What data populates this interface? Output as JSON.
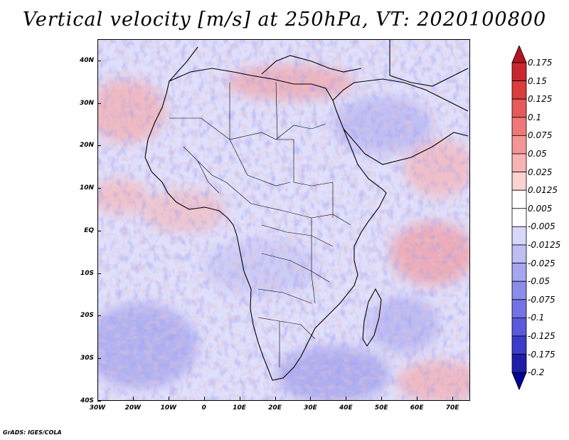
{
  "title": "Vertical velocity [m/s] at 250hPa, VT: 2020100800",
  "footer": "GrADS: IGES/COLA",
  "map": {
    "lon_range": [
      -30,
      75
    ],
    "lat_range": [
      -40,
      45
    ],
    "lat_labels": [
      "40N",
      "30N",
      "20N",
      "10N",
      "EQ",
      "10S",
      "20S",
      "30S",
      "40S"
    ],
    "lon_labels": [
      "30W",
      "20W",
      "10W",
      "0",
      "10E",
      "20E",
      "30E",
      "40E",
      "50E",
      "60E",
      "70E"
    ]
  },
  "colorbar": {
    "labels": [
      "0.175",
      "0.15",
      "0.125",
      "0.1",
      "0.075",
      "0.05",
      "0.025",
      "0.0125",
      "0.005",
      "-0.005",
      "-0.0125",
      "-0.025",
      "-0.05",
      "-0.075",
      "-0.1",
      "-0.125",
      "-0.175",
      "-0.2"
    ],
    "colors": [
      "#b4141e",
      "#c8282d",
      "#dc3c3c",
      "#e65a5a",
      "#ee7878",
      "#f49696",
      "#f8b4b4",
      "#fcd2d2",
      "#ffffff",
      "#ffffff",
      "#d7d7fa",
      "#bebef5",
      "#a5a5f0",
      "#8c8ceb",
      "#7373e6",
      "#5a5adc",
      "#3c3cc8",
      "#1e1eaa",
      "#000096"
    ]
  }
}
